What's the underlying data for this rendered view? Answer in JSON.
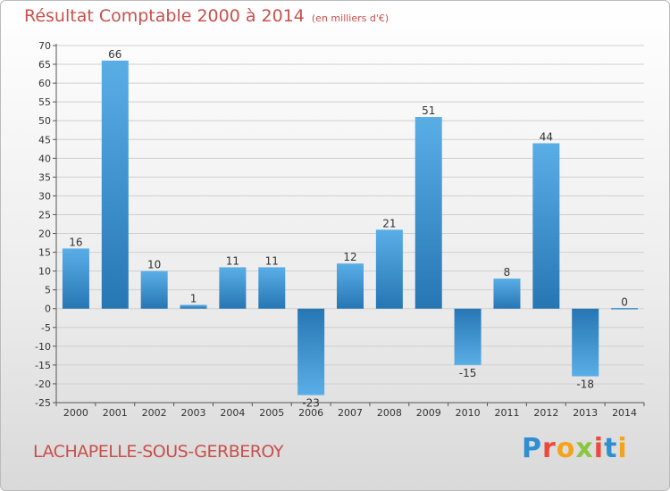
{
  "header": {
    "title": "Résultat Comptable 2000 à 2014",
    "subtitle": "(en milliers d'€)"
  },
  "footer": {
    "place": "LACHAPELLE-SOUS-GERBEROY",
    "logo": "Proxiti"
  },
  "colors": {
    "bar_light": "#5aaee6",
    "bar_dark": "#2676b3",
    "title": "#c8504b",
    "grid": "#cfcfcf"
  },
  "chart_data": {
    "type": "bar",
    "title": "Résultat Comptable 2000 à 2014",
    "subtitle": "(en milliers d'€)",
    "categories": [
      "2000",
      "2001",
      "2002",
      "2003",
      "2004",
      "2005",
      "2006",
      "2007",
      "2008",
      "2009",
      "2010",
      "2011",
      "2012",
      "2013",
      "2014"
    ],
    "values": [
      16,
      66,
      10,
      1,
      11,
      11,
      -23,
      12,
      21,
      51,
      -15,
      8,
      44,
      -18,
      0
    ],
    "ylim": [
      -25,
      70
    ],
    "ytick_step": 5,
    "grid": true,
    "legend": "none"
  }
}
